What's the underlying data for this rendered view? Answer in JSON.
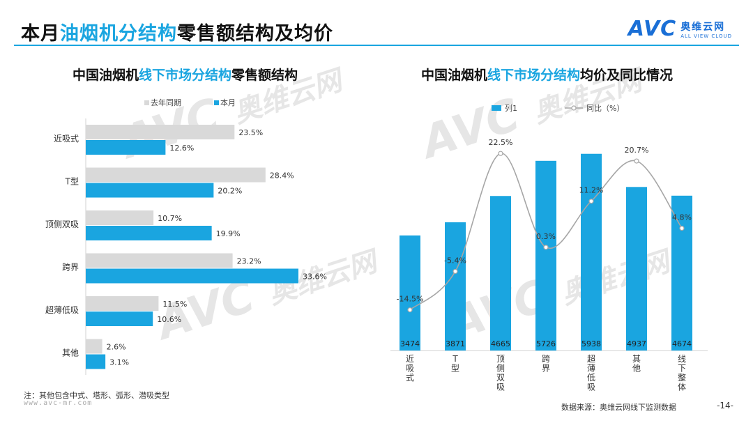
{
  "header": {
    "title_prefix": "本月",
    "title_highlight": "油烟机分结构",
    "title_suffix": "零售额结构及均价",
    "logo_mark": "AVC",
    "logo_cn": "奥维云网",
    "logo_en": "ALL VIEW CLOUD"
  },
  "watermark": {
    "mark": "AVC",
    "cn": "奥维云网",
    "en": "ALL VIEW CLOUD"
  },
  "left_subtitle": {
    "prefix": "中国油烟机",
    "highlight": "线下市场分结构",
    "suffix": "零售额结构"
  },
  "right_subtitle": {
    "prefix": "中国油烟机",
    "highlight": "线下市场分结构",
    "suffix": "均价及同比情况"
  },
  "chart_data": [
    {
      "type": "bar",
      "orientation": "horizontal",
      "categories": [
        "近吸式",
        "T型",
        "顶侧双吸",
        "跨界",
        "超薄低吸",
        "其他"
      ],
      "series": [
        {
          "name": "去年同期",
          "values": [
            23.5,
            28.4,
            10.7,
            23.2,
            11.5,
            2.6
          ],
          "labels": [
            "23.5%",
            "28.4%",
            "10.7%",
            "23.2%",
            "11.5%",
            "2.6%"
          ],
          "color": "#d9d9d9"
        },
        {
          "name": "本月",
          "values": [
            12.6,
            20.2,
            19.9,
            33.6,
            10.6,
            3.1
          ],
          "labels": [
            "12.6%",
            "20.2%",
            "19.9%",
            "33.6%",
            "10.6%",
            "3.1%"
          ],
          "color": "#1aa5e0"
        }
      ],
      "xlim": [
        0,
        40
      ],
      "legend": "top",
      "grid": false
    },
    {
      "type": "bar",
      "categories": [
        "近吸式",
        "T型",
        "顶侧双吸",
        "跨界",
        "超薄低吸",
        "其他",
        "线下整体"
      ],
      "bar_series": {
        "name": "列1",
        "values": [
          3474,
          3871,
          4665,
          5726,
          5938,
          4937,
          4674
        ],
        "labels": [
          "3474",
          "3871",
          "4665",
          "5726",
          "5938",
          "4937",
          "4674"
        ],
        "color": "#1aa5e0"
      },
      "line_series": {
        "name": "同比（%）",
        "values": [
          -14.5,
          -5.4,
          22.5,
          0.3,
          11.2,
          20.7,
          4.8
        ],
        "labels": [
          "-14.5%",
          "-5.4%",
          "22.5%",
          "0.3%",
          "11.2%",
          "20.7%",
          "4.8%"
        ],
        "color": "#a6a6a6"
      },
      "ylim_bar": [
        0,
        6500
      ],
      "ylim_line": [
        -20,
        25
      ],
      "legend": "top",
      "grid": false
    }
  ],
  "footer": {
    "note": "注：其他包含中式、塔形、弧形、潜吸类型",
    "url": "www.avc-mr.com",
    "source": "数据来源：奥维云网线下监测数据",
    "page": "-14-"
  }
}
